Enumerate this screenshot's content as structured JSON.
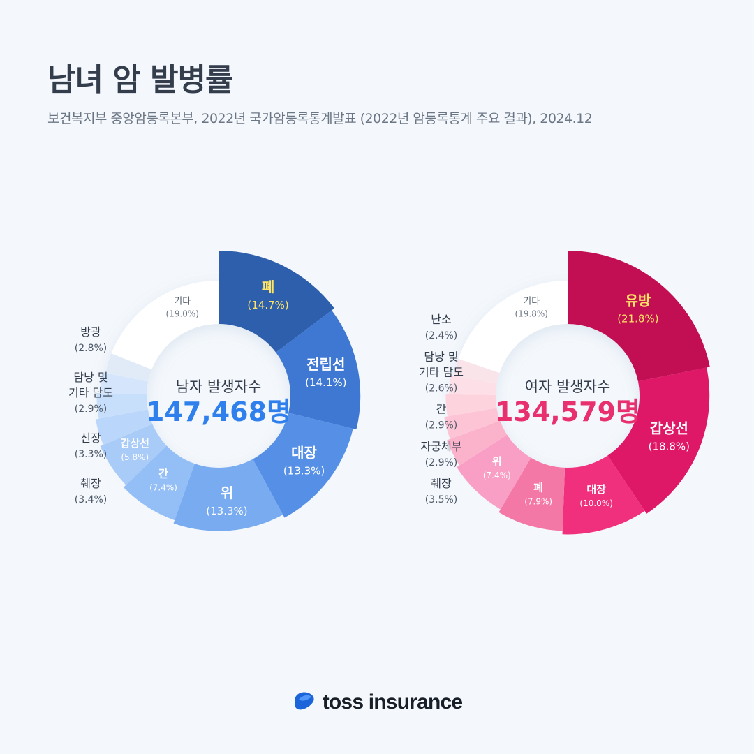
{
  "title": "남녀 암 발병률",
  "subtitle": "보건복지부 중앙암등록본부, 2022년 국가암등록통계발표 (2022년 암등록통계 주요 결과), 2024.12",
  "brand": {
    "name": "toss insurance",
    "logo_icon": "toss-logo-icon"
  },
  "chart_data": [
    {
      "type": "pie",
      "center_label": "남자 발생자수",
      "center_value": "147,468명",
      "accent_color": "#2f80ed",
      "slices": [
        {
          "label": "폐",
          "pct_label": "(14.7%)",
          "value": 14.7,
          "color": "#2d5fad",
          "highlight": true
        },
        {
          "label": "전립선",
          "pct_label": "(14.1%)",
          "value": 14.1,
          "color": "#3f78d2"
        },
        {
          "label": "대장",
          "pct_label": "(13.3%)",
          "value": 13.3,
          "color": "#5590e6"
        },
        {
          "label": "위",
          "pct_label": "(13.3%)",
          "value": 13.3,
          "color": "#78abf0"
        },
        {
          "label": "간",
          "pct_label": "(7.4%)",
          "value": 7.4,
          "color": "#93bef6"
        },
        {
          "label": "갑상선",
          "pct_label": "(5.8%)",
          "value": 5.8,
          "color": "#a8cbf8"
        },
        {
          "label": "췌장",
          "pct_label": "(3.4%)",
          "value": 3.4,
          "color": "#bad6fa"
        },
        {
          "label": "신장",
          "pct_label": "(3.3%)",
          "value": 3.3,
          "color": "#c8dffb"
        },
        {
          "label": "담낭 및|기타 담도",
          "pct_label": "(2.9%)",
          "value": 2.9,
          "color": "#d5e6fc"
        },
        {
          "label": "방광",
          "pct_label": "(2.8%)",
          "value": 2.8,
          "color": "#e1ebf7"
        },
        {
          "label": "기타",
          "pct_label": "(19.0%)",
          "value": 19.0,
          "color": "#ffffff"
        }
      ]
    },
    {
      "type": "pie",
      "center_label": "여자 발생자수",
      "center_value": "134,579명",
      "accent_color": "#e8306e",
      "slices": [
        {
          "label": "유방",
          "pct_label": "(21.8%)",
          "value": 21.8,
          "color": "#c20f53",
          "highlight": true
        },
        {
          "label": "갑상선",
          "pct_label": "(18.8%)",
          "value": 18.8,
          "color": "#de1866"
        },
        {
          "label": "대장",
          "pct_label": "(10.0%)",
          "value": 10.0,
          "color": "#f0307c"
        },
        {
          "label": "폐",
          "pct_label": "(7.9%)",
          "value": 7.9,
          "color": "#f478a6"
        },
        {
          "label": "위",
          "pct_label": "(7.4%)",
          "value": 7.4,
          "color": "#f99ec4"
        },
        {
          "label": "췌장",
          "pct_label": "(3.5%)",
          "value": 3.5,
          "color": "#fbb3cc"
        },
        {
          "label": "자궁체부",
          "pct_label": "(2.9%)",
          "value": 2.9,
          "color": "#fcc4d5"
        },
        {
          "label": "간",
          "pct_label": "(2.9%)",
          "value": 2.9,
          "color": "#fdd3de"
        },
        {
          "label": "담낭 및|기타 담도",
          "pct_label": "(2.6%)",
          "value": 2.6,
          "color": "#fde0e7"
        },
        {
          "label": "난소",
          "pct_label": "(2.4%)",
          "value": 2.4,
          "color": "#f9e4e9"
        },
        {
          "label": "기타",
          "pct_label": "(19.8%)",
          "value": 19.8,
          "color": "#ffffff"
        }
      ]
    }
  ]
}
